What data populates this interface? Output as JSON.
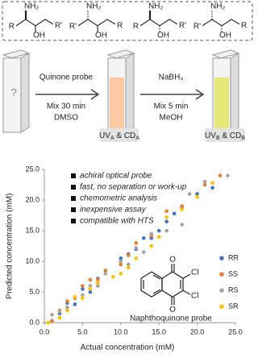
{
  "scheme": {
    "structures": [
      {
        "left": "R",
        "right": "R'",
        "amine": "NH₂",
        "alcohol": "OH"
      },
      {
        "left": "R'",
        "right": "R",
        "amine": "NH₂",
        "alcohol": "OH"
      },
      {
        "left": "R",
        "right": "R'",
        "amine": "NH₂",
        "alcohol": "OH"
      },
      {
        "left": "R'",
        "right": "R",
        "amine": "NH₂",
        "alcohol": "OH"
      }
    ],
    "unknown": "?",
    "step1": {
      "reagent": "Quinone probe",
      "time": "Mix 30 min",
      "solvent": "DMSO"
    },
    "step2": {
      "reagent": "NaBH₄",
      "time": "Mix 5 min",
      "solvent": "MeOH"
    },
    "readout_a": {
      "uv": "UV",
      "uv_sub": "A",
      "cd": " & CD",
      "cd_sub": "A"
    },
    "readout_b": {
      "uv": "UV",
      "uv_sub": "B",
      "cd": " & CD",
      "cd_sub": "B"
    }
  },
  "features": [
    "achiral optical probe",
    "fast, no separation or work-up",
    "chemometric analysis",
    "inexpensive assay",
    "compatible with HTS"
  ],
  "probe": {
    "label": "Naphthoquinone probe",
    "oxygen": "O",
    "chlorine": "Cl"
  },
  "chart_data": {
    "type": "scatter",
    "xlabel": "Actual concentration (mM)",
    "ylabel": "Predicted concentration (mM)",
    "xlim": [
      0,
      25
    ],
    "ylim": [
      0,
      25
    ],
    "xticks": [
      {
        "value": 0,
        "label": "0.0"
      },
      {
        "value": 5,
        "label": "5.0"
      },
      {
        "value": 10,
        "label": "10.0"
      },
      {
        "value": 15,
        "label": "15.0"
      },
      {
        "value": 20,
        "label": "20.0"
      },
      {
        "value": 25,
        "label": "25.0"
      }
    ],
    "yticks": [
      {
        "value": 0,
        "label": "0.0"
      },
      {
        "value": 5,
        "label": "5.0"
      },
      {
        "value": 10,
        "label": "10.0"
      },
      {
        "value": 15,
        "label": "15.0"
      },
      {
        "value": 20,
        "label": "20.0"
      },
      {
        "value": 25,
        "label": "25.0"
      }
    ],
    "legend": "right",
    "series": [
      {
        "name": "RR",
        "color": "#4472c4",
        "x": [
          1,
          2,
          3,
          4,
          5,
          6,
          7,
          8,
          10,
          11,
          12,
          13,
          14,
          15,
          16,
          17,
          18,
          20,
          22
        ],
        "values": [
          0.3,
          1.5,
          3.2,
          3.0,
          5.5,
          5.0,
          7.2,
          8.5,
          10.5,
          11.2,
          12.0,
          13.8,
          13.8,
          15.0,
          16.5,
          17.8,
          18.8,
          21.0,
          22.0
        ]
      },
      {
        "name": "SS",
        "color": "#ed7d31",
        "x": [
          1,
          2,
          3,
          4,
          5,
          6,
          7,
          8,
          10,
          11,
          12,
          14,
          16,
          18,
          21,
          23
        ],
        "values": [
          0.2,
          2.0,
          3.5,
          4.0,
          6.0,
          7.0,
          7.0,
          8.5,
          9.5,
          11.0,
          13.0,
          14.2,
          18.2,
          19.0,
          22.5,
          24.0
        ]
      },
      {
        "name": "RS",
        "color": "#a5a5a5",
        "x": [
          1,
          2,
          3,
          5,
          6,
          7,
          8,
          10,
          11,
          12,
          13,
          14,
          16,
          18,
          19,
          21,
          24
        ],
        "values": [
          1.3,
          1.8,
          2.5,
          4.5,
          6.0,
          6.0,
          8.0,
          10.0,
          9.5,
          12.2,
          11.5,
          14.5,
          15.0,
          16.0,
          21.0,
          23.0,
          24.0
        ]
      },
      {
        "name": "SR",
        "color": "#ffc000",
        "x": [
          0.5,
          2,
          3,
          4,
          5,
          6,
          7,
          9,
          10,
          11,
          12,
          14,
          15,
          16,
          18,
          20,
          22
        ],
        "values": [
          0.0,
          0.8,
          2.0,
          4.2,
          4.0,
          5.5,
          6.5,
          7.5,
          8.0,
          9.0,
          10.5,
          12.5,
          14.0,
          17.2,
          18.5,
          20.5,
          22.8
        ]
      }
    ]
  }
}
